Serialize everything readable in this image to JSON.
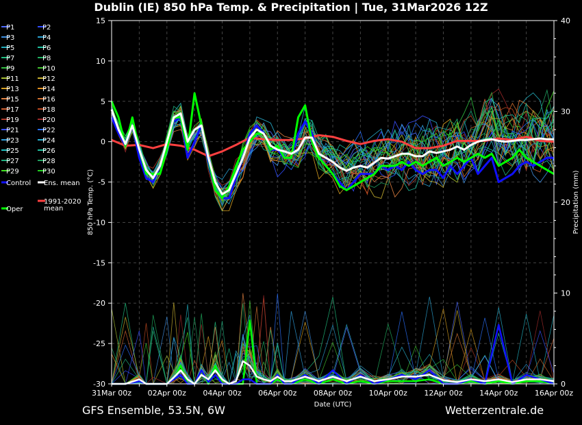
{
  "page": {
    "title": "Dublin  (IE)  850 hPa Temp. & Precipitation | Tue, 31Mar2026 12Z",
    "footer_left": "GFS Ensemble, 53.5N, 6W",
    "footer_right": "Wetterzentrale.de"
  },
  "chart_data": {
    "type": "line",
    "ylabel_left": "850 hPa Temp. (°C)",
    "ylabel_right": "Precipitation (mm)",
    "xlabel": "Date (UTC)",
    "ylim_left": [
      -30,
      15
    ],
    "ylim_right": [
      0,
      40
    ],
    "yticks_left": [
      15,
      10,
      5,
      0,
      -5,
      -10,
      -15,
      -20,
      -25,
      -30
    ],
    "yticks_right": [
      40,
      30,
      20,
      10,
      0
    ],
    "xticks": [
      "31Mar 00z",
      "02Apr 00z",
      "04Apr 00z",
      "06Apr 00z",
      "08Apr 00z",
      "10Apr 00z",
      "12Apr 00z",
      "14Apr 00z",
      "16Apr 00z"
    ],
    "x_hours_range": [
      0,
      384
    ],
    "grid": true,
    "legend": [
      {
        "label": "P1",
        "color": "#4f6cff"
      },
      {
        "label": "P2",
        "color": "#2f4cff"
      },
      {
        "label": "P3",
        "color": "#3f8fe0"
      },
      {
        "label": "P4",
        "color": "#2aa0d0"
      },
      {
        "label": "P5",
        "color": "#22b0c0"
      },
      {
        "label": "P6",
        "color": "#1fc0a0"
      },
      {
        "label": "P7",
        "color": "#1fc080"
      },
      {
        "label": "P8",
        "color": "#20b060"
      },
      {
        "label": "P9",
        "color": "#30c040"
      },
      {
        "label": "P10",
        "color": "#40c030"
      },
      {
        "label": "P11",
        "color": "#a8c030"
      },
      {
        "label": "P12",
        "color": "#c8b030"
      },
      {
        "label": "P13",
        "color": "#d8a020"
      },
      {
        "label": "P14",
        "color": "#e09020"
      },
      {
        "label": "P15",
        "color": "#e08040"
      },
      {
        "label": "P16",
        "color": "#d07030"
      },
      {
        "label": "P17",
        "color": "#d06030"
      },
      {
        "label": "P18",
        "color": "#c04a20"
      },
      {
        "label": "P19",
        "color": "#b03a2a"
      },
      {
        "label": "P20",
        "color": "#a02a2a"
      },
      {
        "label": "P21",
        "color": "#3a50ff"
      },
      {
        "label": "P22",
        "color": "#2a70ff"
      },
      {
        "label": "P23",
        "color": "#30a0e0"
      },
      {
        "label": "P24",
        "color": "#28b0d0"
      },
      {
        "label": "P25",
        "color": "#20c0c0"
      },
      {
        "label": "P26",
        "color": "#20c0a0"
      },
      {
        "label": "P27",
        "color": "#20b080"
      },
      {
        "label": "P28",
        "color": "#20a060"
      },
      {
        "label": "P29",
        "color": "#40e020"
      },
      {
        "label": "P30",
        "color": "#20d020"
      },
      {
        "label": "Control",
        "color": "#1010ff"
      },
      {
        "label": "Ens. mean",
        "color": "#ffffff"
      },
      {
        "label": "1991-2020 mean",
        "color": "#ff4040"
      },
      {
        "label": "Oper",
        "color": "#00ff00"
      }
    ],
    "series": [
      {
        "name": "Ens. mean",
        "hours": [
          0,
          6,
          12,
          18,
          24,
          30,
          36,
          42,
          48,
          54,
          60,
          66,
          72,
          78,
          84,
          90,
          96,
          102,
          108,
          114,
          120,
          126,
          132,
          138,
          144,
          150,
          156,
          162,
          168,
          174,
          180,
          186,
          192,
          198,
          204,
          210,
          216,
          222,
          228,
          234,
          240,
          246,
          252,
          258,
          264,
          270,
          276,
          282,
          288,
          294,
          300,
          306,
          312,
          318,
          324,
          330,
          336,
          342,
          348,
          354,
          360,
          366,
          372,
          378,
          384
        ],
        "temp": [
          4,
          1.5,
          -0.3,
          2,
          -1,
          -3.5,
          -4.5,
          -3,
          0,
          3,
          3.5,
          0,
          1.5,
          2,
          -2,
          -5,
          -6.5,
          -6,
          -4,
          -2,
          0.5,
          1.5,
          1,
          -0.5,
          -1,
          -1.2,
          -1.5,
          -1,
          0.5,
          0.5,
          -1.5,
          -2,
          -2.5,
          -3.2,
          -3.6,
          -3.2,
          -3,
          -3.2,
          -2.6,
          -2,
          -2.1,
          -1.8,
          -1.5,
          -1.5,
          -1.8,
          -1.8,
          -1.2,
          -1.4,
          -1.2,
          -1,
          -0.6,
          -1,
          -0.4,
          0,
          0.2,
          0.3,
          0.1,
          0,
          0.1,
          0.2,
          0.2,
          0.3,
          0.4,
          0.3,
          0.3
        ]
      },
      {
        "name": "Control",
        "hours": [
          0,
          6,
          12,
          18,
          24,
          30,
          36,
          42,
          48,
          54,
          60,
          66,
          72,
          78,
          84,
          90,
          96,
          102,
          108,
          114,
          120,
          126,
          132,
          138,
          144,
          150,
          156,
          162,
          168,
          174,
          180,
          186,
          192,
          198,
          204,
          210,
          216,
          222,
          228,
          234,
          240,
          246,
          252,
          258,
          264,
          270,
          276,
          282,
          288,
          294,
          300,
          306,
          312,
          318,
          324,
          330,
          336,
          342,
          348,
          354,
          360,
          366,
          372,
          378,
          384
        ],
        "temp": [
          3,
          1,
          -0.5,
          2,
          -2,
          -4.5,
          -5,
          -3,
          0,
          2.5,
          3,
          -2,
          0,
          2,
          -2.5,
          -6,
          -7,
          -7,
          -4.5,
          -2,
          1,
          2,
          1,
          -1,
          -1,
          -2,
          -2,
          1,
          2.5,
          1,
          -2,
          -3,
          -4,
          -5,
          -6,
          -5,
          -4,
          -4,
          -4,
          -3,
          -3.5,
          -3,
          -3.5,
          -2.5,
          -3.5,
          -4,
          -3.5,
          -3.5,
          -4.5,
          -3,
          -4,
          -3,
          -2,
          -4,
          -3,
          -2,
          -5,
          -4.5,
          -4,
          -3,
          -2.5,
          -3,
          -2.5,
          -2,
          -2
        ]
      },
      {
        "name": "Oper",
        "hours": [
          0,
          6,
          12,
          18,
          24,
          30,
          36,
          42,
          48,
          54,
          60,
          66,
          72,
          78,
          84,
          90,
          96,
          102,
          108,
          114,
          120,
          126,
          132,
          138,
          144,
          150,
          156,
          162,
          168,
          174,
          180,
          186,
          192,
          198,
          204,
          210,
          216,
          222,
          228,
          234,
          240,
          246,
          252,
          258,
          264,
          270,
          276,
          282,
          288,
          294,
          300,
          306,
          312,
          318,
          324,
          330,
          336,
          342,
          348,
          354,
          360,
          366,
          372,
          378,
          384
        ],
        "temp": [
          5,
          3,
          -0.5,
          3,
          -1,
          -4,
          -4,
          -4,
          -1,
          3,
          3,
          -1,
          6,
          2,
          -2,
          -6,
          -7,
          -5.5,
          -3,
          -1,
          0,
          1,
          1,
          -1,
          -0.5,
          -2,
          -2,
          3,
          4.5,
          0,
          -2,
          -3,
          -4,
          -5.5,
          -6,
          -5.5,
          -5,
          -4.5,
          -4,
          -3,
          -3,
          -3,
          -2.5,
          -3,
          -2.5,
          -3,
          -2.5,
          -2,
          -3,
          -2.5,
          -2,
          -2.5,
          -2,
          -1.5,
          -2,
          -1.5,
          -3,
          -2.5,
          -2,
          -1,
          -2,
          -2.5,
          -3,
          -3.5,
          -4
        ]
      },
      {
        "name": "1991-2020 mean",
        "hours": [
          0,
          12,
          24,
          36,
          48,
          60,
          72,
          84,
          96,
          108,
          120,
          132,
          144,
          156,
          168,
          180,
          192,
          204,
          216,
          228,
          240,
          252,
          264,
          276,
          288,
          300,
          312,
          324,
          336,
          348,
          360,
          372,
          384
        ],
        "temp": [
          0.2,
          -0.5,
          -0.4,
          -0.8,
          -0.3,
          -0.5,
          -1,
          -1.8,
          -1.2,
          -0.4,
          0.5,
          0.3,
          0.2,
          0.2,
          0.4,
          0.8,
          0.6,
          0.1,
          -0.3,
          0.1,
          0.3,
          0,
          -0.8,
          -0.8,
          -0.5,
          0.1,
          0.1,
          0.1,
          0.4,
          0.2,
          0.6,
          0.1,
          0
        ]
      },
      {
        "name": "Precipitation ens. mean",
        "hours": [
          0,
          12,
          24,
          30,
          36,
          48,
          54,
          60,
          66,
          72,
          78,
          84,
          90,
          96,
          102,
          108,
          114,
          120,
          126,
          132,
          138,
          144,
          150,
          156,
          168,
          180,
          192,
          204,
          216,
          228,
          240,
          252,
          264,
          276,
          288,
          300,
          312,
          324,
          336,
          348,
          360,
          372,
          384
        ],
        "precip": [
          0,
          0,
          0.5,
          0,
          0,
          0,
          0.7,
          1.5,
          0.5,
          0,
          1,
          0.5,
          1.5,
          0.5,
          0,
          0.3,
          2.5,
          2,
          0.8,
          0.5,
          0.3,
          0.8,
          0.3,
          0.3,
          0.8,
          0.3,
          0.8,
          0.3,
          0.8,
          0.3,
          0.5,
          0.8,
          0.8,
          1,
          0.4,
          0.2,
          0.5,
          0.3,
          0.5,
          0.2,
          0.5,
          0.5,
          0.3
        ]
      },
      {
        "name": "Precipitation Control",
        "hours": [
          0,
          12,
          24,
          30,
          36,
          48,
          54,
          60,
          66,
          72,
          78,
          84,
          90,
          96,
          102,
          108,
          114,
          120,
          126,
          132,
          138,
          144,
          150,
          156,
          168,
          180,
          192,
          204,
          216,
          228,
          240,
          252,
          264,
          276,
          288,
          300,
          312,
          324,
          336,
          348,
          360,
          372,
          384
        ],
        "precip": [
          0,
          0,
          0.3,
          0,
          0,
          0,
          0.5,
          1,
          0,
          0,
          1.5,
          0.2,
          1,
          0,
          0,
          0,
          0.5,
          0.5,
          0,
          0,
          0,
          1,
          0,
          0,
          1,
          0,
          1.5,
          0,
          1,
          0,
          0.5,
          1,
          0.5,
          1.5,
          0,
          0,
          0.5,
          0,
          6.5,
          0,
          1,
          0.5,
          0
        ]
      },
      {
        "name": "Precipitation Oper",
        "hours": [
          0,
          12,
          24,
          30,
          36,
          48,
          54,
          60,
          66,
          72,
          78,
          84,
          90,
          96,
          102,
          108,
          114,
          120,
          126,
          132,
          138,
          144,
          150,
          156,
          168,
          180,
          192,
          204,
          216,
          228,
          240,
          252,
          264,
          276,
          288,
          300,
          312,
          324,
          336,
          348,
          360,
          372,
          384
        ],
        "precip": [
          0,
          0,
          0.5,
          0,
          0,
          0,
          0.5,
          2,
          0,
          0,
          1.5,
          0,
          2,
          0,
          0,
          0,
          0,
          7,
          0,
          0,
          0,
          0.5,
          0,
          0,
          0.5,
          0,
          0.5,
          0,
          0.3,
          0,
          0.3,
          0.3,
          0.3,
          0.5,
          0,
          0,
          0.3,
          0,
          0.3,
          0,
          0.3,
          0.3,
          0
        ]
      }
    ]
  }
}
